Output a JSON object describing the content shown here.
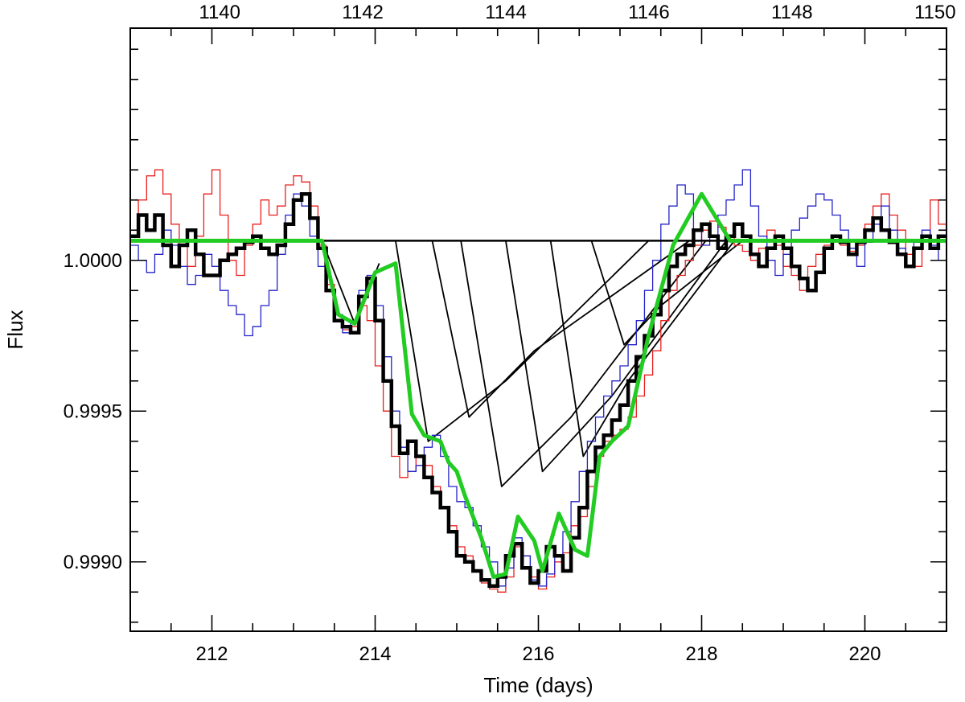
{
  "chart_data": {
    "type": "line",
    "title": "",
    "xlabel": "Time (days)",
    "ylabel": "Flux",
    "xlim": [
      211.0,
      221.0
    ],
    "ylim": [
      0.99877,
      1.00077
    ],
    "x_ticks": [
      212,
      214,
      216,
      218,
      220
    ],
    "x_tick_labels": [
      "212",
      "214",
      "216",
      "218",
      "220"
    ],
    "y_ticks": [
      0.999,
      0.9995,
      1.0
    ],
    "y_tick_labels": [
      "0.9990",
      "0.9995",
      "1.0000"
    ],
    "top_axis": {
      "xlim": [
        1138.75,
        1150.16
      ],
      "ticks": [
        1140,
        1142,
        1144,
        1146,
        1148,
        1150
      ],
      "tick_labels": [
        "1140",
        "1142",
        "1144",
        "1146",
        "1148",
        "1150"
      ]
    },
    "grid": false,
    "legend": "none",
    "colors": {
      "black_data": "#000000",
      "red_data": "#e8201e",
      "blue_data": "#2323c8",
      "model": "#22cc22",
      "components": "#000000"
    },
    "baseline": 1.000065,
    "series": [
      {
        "style": "step",
        "color": "#e8201e",
        "x": [
          211.0,
          211.1,
          211.2,
          211.3,
          211.4,
          211.5,
          211.6,
          211.7,
          211.8,
          211.9,
          212.0,
          212.1,
          212.2,
          212.3,
          212.4,
          212.5,
          212.6,
          212.7,
          212.8,
          212.9,
          213.0,
          213.1,
          213.2,
          213.3,
          213.4,
          213.5,
          213.6,
          213.7,
          213.8,
          213.9,
          214.0,
          214.1,
          214.2,
          214.3,
          214.4,
          214.5,
          214.6,
          214.7,
          214.8,
          214.9,
          215.0,
          215.1,
          215.2,
          215.3,
          215.4,
          215.5,
          215.6,
          215.7,
          215.8,
          215.9,
          216.0,
          216.1,
          216.2,
          216.3,
          216.4,
          216.5,
          216.6,
          216.7,
          216.8,
          216.9,
          217.0,
          217.1,
          217.2,
          217.3,
          217.4,
          217.5,
          217.6,
          217.7,
          217.8,
          217.9,
          218.0,
          218.1,
          218.2,
          218.3,
          218.4,
          218.5,
          218.6,
          218.7,
          218.8,
          218.9,
          219.0,
          219.1,
          219.2,
          219.3,
          219.4,
          219.5,
          219.6,
          219.7,
          219.8,
          219.9,
          220.0,
          220.1,
          220.2,
          220.3,
          220.4,
          220.5,
          220.6,
          220.7,
          220.8,
          220.9
        ],
        "y": [
          1.0001,
          1.0002,
          1.00028,
          1.0003,
          1.00022,
          1.00012,
          1.00005,
          0.99998,
          1.00008,
          1.00022,
          1.0003,
          1.00015,
          1.0,
          0.99995,
          1.00005,
          1.00012,
          1.0002,
          1.00015,
          1.00018,
          1.00025,
          1.00028,
          1.00026,
          1.00018,
          1.00005,
          0.99992,
          0.99982,
          0.99977,
          0.99978,
          0.99985,
          0.9998,
          0.99965,
          0.9995,
          0.99935,
          0.99928,
          0.9993,
          0.99935,
          0.99932,
          0.99925,
          0.99918,
          0.99912,
          0.99905,
          0.99902,
          0.99897,
          0.99893,
          0.99891,
          0.9989,
          0.99895,
          0.99905,
          0.99902,
          0.99895,
          0.99891,
          0.99895,
          0.999,
          0.99903,
          0.99912,
          0.99915,
          0.99925,
          0.99935,
          0.9994,
          0.99942,
          0.99944,
          0.99948,
          0.99955,
          0.99962,
          0.9997,
          0.9998,
          0.9999,
          0.99995,
          1.0,
          1.00005,
          1.0001,
          1.00013,
          1.00011,
          1.00008,
          1.00005,
          1.00003,
          1.0,
          1.00004,
          1.0001,
          1.00005,
          0.99998,
          0.99995,
          0.9999,
          0.99998,
          1.00002,
          1.00005,
          1.00008,
          1.00005,
          1.00003,
          1.00005,
          1.00012,
          1.00018,
          1.00022,
          1.00015,
          1.0001,
          1.00002,
          0.99998,
          1.00008,
          1.0002,
          1.00012
        ]
      },
      {
        "style": "step",
        "color": "#2323c8",
        "x": [
          211.0,
          211.1,
          211.2,
          211.3,
          211.4,
          211.5,
          211.6,
          211.7,
          211.8,
          211.9,
          212.0,
          212.1,
          212.2,
          212.3,
          212.4,
          212.5,
          212.6,
          212.7,
          212.8,
          212.9,
          213.0,
          213.1,
          213.2,
          213.3,
          213.4,
          213.5,
          213.6,
          213.7,
          213.8,
          213.9,
          214.0,
          214.1,
          214.2,
          214.3,
          214.4,
          214.5,
          214.6,
          214.7,
          214.8,
          214.9,
          215.0,
          215.1,
          215.2,
          215.3,
          215.4,
          215.5,
          215.6,
          215.7,
          215.8,
          215.9,
          216.0,
          216.1,
          216.2,
          216.3,
          216.4,
          216.5,
          216.6,
          216.7,
          216.8,
          216.9,
          217.0,
          217.1,
          217.2,
          217.3,
          217.4,
          217.5,
          217.6,
          217.7,
          217.8,
          217.9,
          218.0,
          218.1,
          218.2,
          218.3,
          218.4,
          218.5,
          218.6,
          218.7,
          218.8,
          218.9,
          219.0,
          219.1,
          219.2,
          219.3,
          219.4,
          219.5,
          219.6,
          219.7,
          219.8,
          219.9,
          220.0,
          220.1,
          220.2,
          220.3,
          220.4,
          220.5,
          220.6,
          220.7,
          220.8,
          220.9
        ],
        "y": [
          1.00005,
          1.0,
          0.99996,
          1.00002,
          1.0001,
          1.00005,
          0.99998,
          0.99992,
          0.99995,
          1.00002,
          0.99998,
          0.9999,
          0.99985,
          0.99982,
          0.99975,
          0.99978,
          0.99985,
          0.9999,
          1.00002,
          1.00015,
          1.00022,
          1.00018,
          1.00008,
          0.99998,
          0.9999,
          0.99982,
          0.99976,
          0.9998,
          0.9999,
          0.99995,
          0.99985,
          0.99968,
          0.9995,
          0.99938,
          0.9993,
          0.99932,
          0.99938,
          0.99942,
          0.99935,
          0.99925,
          0.9992,
          0.99918,
          0.99912,
          0.99905,
          0.999,
          0.99892,
          0.99898,
          0.99908,
          0.99902,
          0.99894,
          0.99892,
          0.99896,
          0.99902,
          0.9991,
          0.9992,
          0.9993,
          0.9994,
          0.99948,
          0.99955,
          0.9996,
          0.99965,
          0.99972,
          0.9998,
          0.9999,
          1.0,
          1.00012,
          1.00018,
          1.00025,
          1.00022,
          1.0001,
          1.00005,
          1.00008,
          1.00015,
          1.0002,
          1.00025,
          1.0003,
          1.00018,
          1.00008,
          1.0,
          0.99995,
          1.00002,
          1.0001,
          1.00014,
          1.00018,
          1.00022,
          1.0002,
          1.00015,
          1.0001,
          1.00004,
          0.99998,
          1.00006,
          1.00012,
          1.00018,
          1.0001,
          1.00004,
          0.99998,
          1.00006,
          1.0001,
          1.00005,
          1.0
        ]
      },
      {
        "style": "step",
        "color": "#000000",
        "thick": true,
        "x": [
          211.0,
          211.1,
          211.2,
          211.3,
          211.4,
          211.5,
          211.6,
          211.7,
          211.8,
          211.9,
          212.0,
          212.1,
          212.2,
          212.3,
          212.4,
          212.5,
          212.6,
          212.7,
          212.8,
          212.9,
          213.0,
          213.1,
          213.2,
          213.3,
          213.4,
          213.5,
          213.6,
          213.7,
          213.8,
          213.9,
          214.0,
          214.1,
          214.2,
          214.3,
          214.4,
          214.5,
          214.6,
          214.7,
          214.8,
          214.9,
          215.0,
          215.1,
          215.2,
          215.3,
          215.4,
          215.5,
          215.6,
          215.7,
          215.8,
          215.9,
          216.0,
          216.1,
          216.2,
          216.3,
          216.4,
          216.5,
          216.6,
          216.7,
          216.8,
          216.9,
          217.0,
          217.1,
          217.2,
          217.3,
          217.4,
          217.5,
          217.6,
          217.7,
          217.8,
          217.9,
          218.0,
          218.1,
          218.2,
          218.3,
          218.4,
          218.5,
          218.6,
          218.7,
          218.8,
          218.9,
          219.0,
          219.1,
          219.2,
          219.3,
          219.4,
          219.5,
          219.6,
          219.7,
          219.8,
          219.9,
          220.0,
          220.1,
          220.2,
          220.3,
          220.4,
          220.5,
          220.6,
          220.7,
          220.8,
          220.9
        ],
        "y": [
          1.00008,
          1.00015,
          1.0001,
          1.00015,
          1.00005,
          0.99998,
          1.00005,
          1.0001,
          1.00002,
          0.99995,
          0.99995,
          1.0,
          1.00002,
          1.00004,
          1.00006,
          1.00008,
          1.00004,
          1.00002,
          1.00005,
          1.00012,
          1.0002,
          1.00022,
          1.00014,
          1.00004,
          0.9999,
          0.9998,
          0.99978,
          0.99976,
          0.99988,
          0.99994,
          0.9998,
          0.9996,
          0.99945,
          0.99936,
          0.9994,
          0.99935,
          0.99928,
          0.99923,
          0.99918,
          0.9991,
          0.99902,
          0.999,
          0.99897,
          0.99894,
          0.99892,
          0.99895,
          0.99902,
          0.99906,
          0.99898,
          0.99893,
          0.99897,
          0.99905,
          0.99902,
          0.99897,
          0.99908,
          0.99918,
          0.9993,
          0.99938,
          0.99942,
          0.99947,
          0.99952,
          0.9996,
          0.99968,
          0.99975,
          0.99982,
          0.9999,
          0.99998,
          1.00002,
          1.00005,
          1.0001,
          1.00012,
          1.00008,
          1.00004,
          1.00008,
          1.00012,
          1.00008,
          1.00002,
          0.99998,
          1.00004,
          1.00008,
          1.00004,
          0.99998,
          0.99994,
          0.9999,
          0.99996,
          1.00004,
          1.00008,
          1.00006,
          1.00002,
          1.00006,
          1.0001,
          1.00014,
          1.0001,
          1.00006,
          1.00002,
          0.99998,
          1.00004,
          1.00008,
          1.00004,
          1.00008
        ]
      },
      {
        "style": "line",
        "color": "#22cc22",
        "x": [
          211.0,
          213.35,
          213.55,
          213.75,
          214.0,
          214.25,
          214.45,
          214.6,
          214.8,
          214.9,
          215.0,
          215.1,
          215.3,
          215.45,
          215.6,
          215.75,
          215.95,
          216.05,
          216.25,
          216.45,
          216.6,
          216.75,
          216.9,
          217.1,
          217.35,
          217.65,
          218.0,
          218.35,
          221.0
        ],
        "y": [
          1.000065,
          1.000065,
          0.99982,
          0.99979,
          0.99996,
          0.99999,
          0.99949,
          0.99942,
          0.9994,
          0.99933,
          0.9993,
          0.99922,
          0.99908,
          0.99895,
          0.99896,
          0.99915,
          0.99907,
          0.99897,
          0.99916,
          0.99904,
          0.99902,
          0.99935,
          0.9994,
          0.99945,
          0.99975,
          1.00005,
          1.00022,
          1.000065,
          1.000065
        ]
      },
      {
        "style": "line",
        "color": "#000000",
        "name_hidden": "baseline",
        "x": [
          211.0,
          221.0
        ],
        "y": [
          1.000065,
          1.000065
        ]
      }
    ],
    "components": [
      {
        "x": [
          213.35,
          213.75,
          214.05
        ],
        "y": [
          1.000065,
          0.99979,
          0.99999
        ]
      },
      {
        "x": [
          214.25,
          214.65,
          215.6,
          217.35
        ],
        "y": [
          1.000065,
          0.9994,
          0.9996,
          1.000065
        ]
      },
      {
        "x": [
          214.7,
          215.15,
          215.95,
          217.85
        ],
        "y": [
          1.000065,
          0.99948,
          0.9997,
          1.000065
        ]
      },
      {
        "x": [
          215.05,
          215.55,
          216.4,
          218.05
        ],
        "y": [
          1.000065,
          0.99925,
          0.99948,
          1.000065
        ]
      },
      {
        "x": [
          215.6,
          216.05,
          216.9,
          218.3
        ],
        "y": [
          1.000065,
          0.9993,
          0.99955,
          1.000065
        ]
      },
      {
        "x": [
          216.15,
          216.55,
          217.1,
          218.4
        ],
        "y": [
          1.000065,
          0.99935,
          0.9996,
          1.000065
        ]
      },
      {
        "x": [
          216.65,
          217.05,
          217.5,
          218.5
        ],
        "y": [
          1.000065,
          0.99972,
          0.99985,
          1.000065
        ]
      }
    ]
  }
}
